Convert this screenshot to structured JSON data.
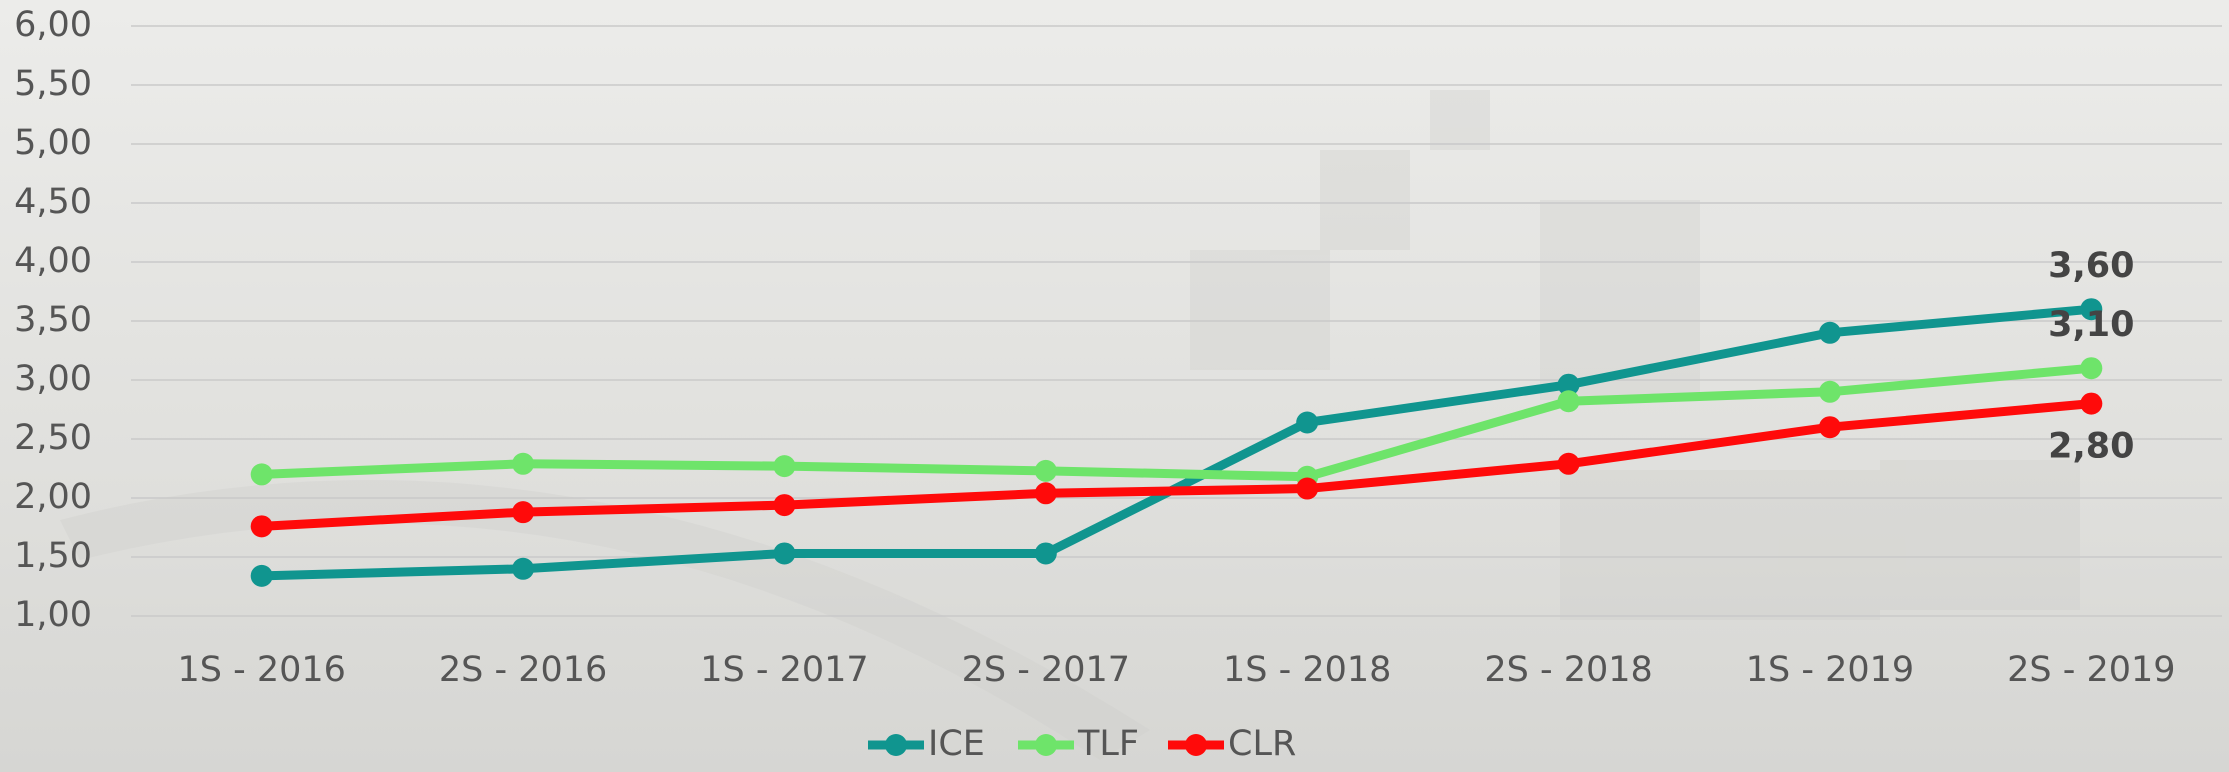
{
  "chart_data": {
    "type": "line",
    "categories": [
      "1S - 2016",
      "2S - 2016",
      "1S - 2017",
      "2S - 2017",
      "1S - 2018",
      "2S - 2018",
      "1S - 2019",
      "2S - 2019"
    ],
    "series": [
      {
        "name": "ICE",
        "color": "#10958f",
        "values": [
          1.34,
          1.4,
          1.53,
          1.53,
          2.64,
          2.96,
          3.4,
          3.6
        ],
        "value_labels": [
          null,
          null,
          null,
          null,
          null,
          null,
          null,
          "3,60"
        ]
      },
      {
        "name": "TLF",
        "color": "#6ee46a",
        "values": [
          2.2,
          2.29,
          2.27,
          2.23,
          2.18,
          2.82,
          2.9,
          3.1
        ],
        "value_labels": [
          null,
          null,
          null,
          null,
          null,
          null,
          null,
          "3,10"
        ]
      },
      {
        "name": "CLR",
        "color": "#ff0a0a",
        "values": [
          1.76,
          1.88,
          1.94,
          2.04,
          2.08,
          2.29,
          2.6,
          2.8
        ],
        "value_labels": [
          null,
          null,
          null,
          null,
          null,
          null,
          null,
          "2,80"
        ]
      }
    ],
    "ylim": [
      1,
      6
    ],
    "yticks": [
      {
        "value": 1,
        "label": "1,00"
      },
      {
        "value": 1.5,
        "label": "1,50"
      },
      {
        "value": 2,
        "label": "2,00"
      },
      {
        "value": 2.5,
        "label": "2,50"
      },
      {
        "value": 3,
        "label": "3,00"
      },
      {
        "value": 3.5,
        "label": "3,50"
      },
      {
        "value": 4,
        "label": "4,00"
      },
      {
        "value": 4.5,
        "label": "4,50"
      },
      {
        "value": 5,
        "label": "5,00"
      },
      {
        "value": 5.5,
        "label": "5,50"
      },
      {
        "value": 6,
        "label": "6,00"
      }
    ],
    "grid": true,
    "legend": "bottom"
  }
}
